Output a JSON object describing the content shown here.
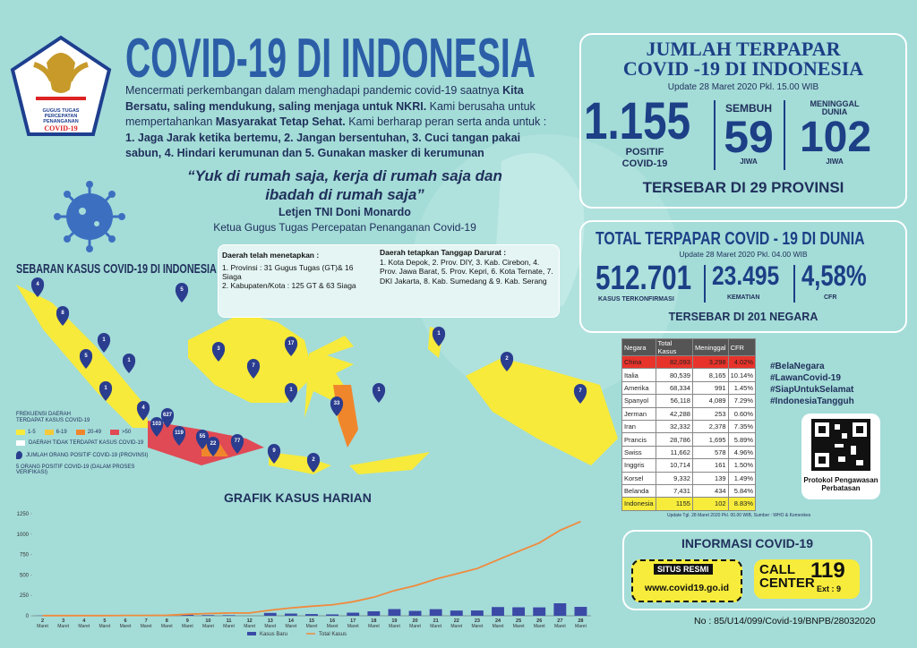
{
  "header": {
    "title": "COVID-19 DI INDONESIA",
    "logo_lines": [
      "GUGUS TUGAS",
      "PERCEPATAN",
      "PENANGANAN",
      "COVID-19"
    ]
  },
  "intro": {
    "parts": [
      {
        "text": "Mencermati perkembangan dalam menghadapi pandemic covid-19 saatnya ",
        "bold": false
      },
      {
        "text": "Kita Bersatu, saling mendukung, saling menjaga untuk NKRI.",
        "bold": true
      },
      {
        "text": " Kami berusaha untuk mempertahankan ",
        "bold": false
      },
      {
        "text": "Masyarakat Tetap Sehat.",
        "bold": true
      },
      {
        "text": " Kami berharap peran serta anda untuk : ",
        "bold": false
      },
      {
        "text": "1. Jaga Jarak ketika bertemu, 2. Jangan bersentuhan, 3. Cuci tangan pakai sabun, 4. Hindari kerumunan dan 5. Gunakan masker di kerumunan",
        "bold": true
      }
    ]
  },
  "quote": {
    "text": "“Yuk di rumah saja, kerja di rumah saja dan ibadah di rumah saja”",
    "author": "Letjen TNI Doni Monardo",
    "role": "Ketua Gugus Tugas Percepatan Penanganan Covid-19"
  },
  "regions": {
    "established_title": "Daerah telah menetapkan :",
    "established_items": [
      "1. Provinsi : 31 Gugus Tugas (GT)& 16 Siaga",
      "2. Kabupaten/Kota : 125 GT & 63 Siaga"
    ],
    "emergency_title": "Daerah tetapkan Tanggap Darurat :",
    "emergency_text": "1. Kota Depok, 2. Prov. DIY, 3. Kab. Cirebon, 4. Prov. Jawa Barat, 5. Prov. Kepri, 6. Kota Ternate, 7. DKI Jakarta, 8. Kab. Sumedang & 9. Kab. Serang"
  },
  "indonesia": {
    "title_lines": [
      "JUMLAH TERPAPAR",
      "COVID -19 DI INDONESIA"
    ],
    "update": "Update 28 Maret 2020 Pkl. 15.00 WIB",
    "positive": "1.155",
    "positive_label": "POSITIF COVID-19",
    "recovered_label": "SEMBUH",
    "recovered": "59",
    "recovered_unit": "JIWA",
    "deaths_label": "MENINGGAL DUNIA",
    "deaths": "102",
    "deaths_unit": "JIWA",
    "spread": "TERSEBAR DI 29 PROVINSI"
  },
  "world": {
    "title": "TOTAL TERPAPAR COVID - 19 DI DUNIA",
    "update": "Update 28 Maret 2020 Pkl. 04.00 WIB",
    "confirmed": "512.701",
    "confirmed_label": "KASUS TERKONFIRMASI",
    "deaths": "23.495",
    "deaths_label": "KEMATIAN",
    "cfr": "4,58%",
    "cfr_label": "CFR",
    "spread": "TERSEBAR DI 201 NEGARA"
  },
  "table": {
    "header": [
      "Negara",
      "Total Kasus",
      "Meninggal",
      "CFR"
    ],
    "rows": [
      {
        "cells": [
          "China",
          "82,093",
          "3,298",
          "4.02%"
        ],
        "color": "#e8332a"
      },
      {
        "cells": [
          "Italia",
          "80,539",
          "8,165",
          "10.14%"
        ]
      },
      {
        "cells": [
          "Amerika",
          "68,334",
          "991",
          "1.45%"
        ]
      },
      {
        "cells": [
          "Spanyol",
          "56,118",
          "4,089",
          "7.29%"
        ]
      },
      {
        "cells": [
          "Jerman",
          "42,288",
          "253",
          "0.60%"
        ]
      },
      {
        "cells": [
          "Iran",
          "32,332",
          "2,378",
          "7.35%"
        ]
      },
      {
        "cells": [
          "Prancis",
          "28,786",
          "1,695",
          "5.89%"
        ]
      },
      {
        "cells": [
          "Swiss",
          "11,662",
          "578",
          "4.96%"
        ]
      },
      {
        "cells": [
          "Inggris",
          "10,714",
          "161",
          "1.50%"
        ]
      },
      {
        "cells": [
          "Korsel",
          "9,332",
          "139",
          "1.49%"
        ]
      },
      {
        "cells": [
          "Belanda",
          "7,431",
          "434",
          "5.84%"
        ]
      },
      {
        "cells": [
          "Indonesia",
          "1155",
          "102",
          "8.83%"
        ],
        "color": "#f7ec3b"
      }
    ],
    "note": "Update Tgl. 28 Maret 2020 Pkl. 00.00 WIB, Sumber : WHO & Kemenkes"
  },
  "hashtags": [
    "#BelaNegara",
    "#LawanCovid-19",
    "#SiapUntukSelamat",
    "#IndonesiaTangguh"
  ],
  "qr_caption": "Protokol Pengawasan Perbatasan",
  "info": {
    "title": "INFORMASI COVID-19",
    "site_label": "SITUS RESMI",
    "url": "www.covid19.go.id",
    "call_lines": [
      "CALL",
      "CENTER"
    ],
    "number": "119",
    "ext": "Ext : 9"
  },
  "footer": "No : 85/U14/099/Covid-19/BNPB/28032020",
  "map": {
    "title": "SEBARAN KASUS COVID-19 DI INDONESIA",
    "legend_title": "FREKUENSI DAERAH TERDAPAT KASUS COVID-19",
    "legend": [
      {
        "label": "1-5",
        "color": "#f7ea3a"
      },
      {
        "label": "6-19",
        "color": "#f5c93a"
      },
      {
        "label": "20-49",
        "color": "#f0862c"
      },
      {
        "label": ">50",
        "color": "#e04a55"
      }
    ],
    "no_case": "DAERAH TIDAK TERDAPAT KASUS COVID-19",
    "pin_legend": "JUMLAH ORANG POSITIF COVID-19 (PROVINSI)",
    "verification": "5 ORANG POSITIF COVID-19 (DALAM PROSES VERIFIKASI)",
    "pins": [
      "4",
      "5",
      "8",
      "1",
      "5",
      "1",
      "1",
      "4",
      "3",
      "2",
      "17",
      "7",
      "1",
      "1",
      "33",
      "1",
      "2",
      "7",
      "627",
      "103",
      "119",
      "55",
      "22",
      "77",
      "9",
      "2"
    ]
  },
  "chart_data": {
    "type": "combo",
    "title": "GRAFIK KASUS HARIAN",
    "categories": [
      "2",
      "3",
      "4",
      "5",
      "6",
      "7",
      "8",
      "9",
      "10",
      "11",
      "12",
      "13",
      "14",
      "15",
      "16",
      "17",
      "18",
      "19",
      "20",
      "21",
      "22",
      "23",
      "24",
      "25",
      "26",
      "27",
      "28"
    ],
    "x_sublabel": "Maret",
    "series": [
      {
        "name": "Kasus Baru",
        "kind": "bar",
        "color": "#3a4aa6",
        "values": [
          2,
          0,
          0,
          0,
          2,
          0,
          2,
          13,
          8,
          7,
          0,
          35,
          27,
          21,
          17,
          38,
          55,
          82,
          60,
          81,
          64,
          65,
          107,
          104,
          103,
          153,
          109
        ]
      },
      {
        "name": "Total Kasus",
        "kind": "line",
        "color": "#f08a3c",
        "values": [
          2,
          2,
          2,
          2,
          4,
          4,
          6,
          19,
          27,
          34,
          34,
          69,
          96,
          117,
          134,
          172,
          227,
          309,
          369,
          450,
          514,
          579,
          686,
          790,
          893,
          1046,
          1155
        ]
      }
    ],
    "ylim": [
      0,
      1250
    ],
    "yticks": [
      0,
      250,
      500,
      750,
      1000,
      1250
    ]
  }
}
